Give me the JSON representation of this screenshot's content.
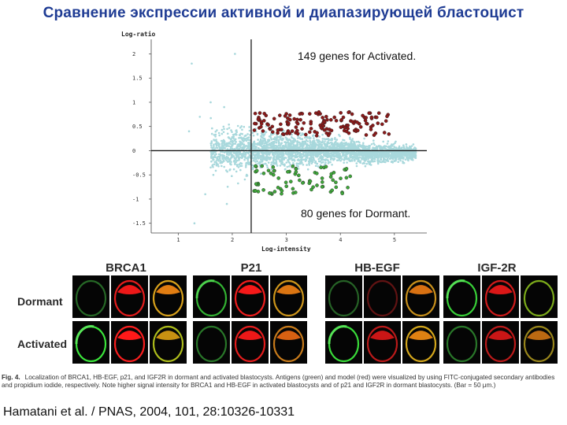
{
  "slide": {
    "title": "Сравнение экспрессии активной и диапазирующей бластоцист",
    "citation": "Hamatani et al. / PNAS, 2004, 101, 28:10326-10331"
  },
  "chart_data": {
    "type": "scatter",
    "title": "",
    "xlabel": "Log-intensity",
    "ylabel": "Log-ratio",
    "xlim": [
      0.5,
      5.6
    ],
    "ylim": [
      -1.7,
      2.3
    ],
    "x_ticks": [
      "1",
      "2",
      "3",
      "4",
      "5"
    ],
    "y_ticks": [
      "2",
      "1.5",
      "1",
      "0.5",
      "0",
      "-0.5",
      "-1",
      "-1.5"
    ],
    "annotations": [
      "149 genes for Activated.",
      "80 genes for Dormant."
    ],
    "reference_lines": {
      "x": 2.35,
      "y": 0
    },
    "series": [
      {
        "role": "all",
        "color": "#a8d8dc",
        "approx_count": 3000
      },
      {
        "role": "activated",
        "color": "#8b1a1a",
        "count": 149,
        "y_range": [
          0.3,
          0.8
        ],
        "x_range": [
          2.4,
          4.9
        ]
      },
      {
        "role": "dormant",
        "color": "#3fa63a",
        "count": 80,
        "y_range": [
          -0.9,
          -0.3
        ],
        "x_range": [
          2.4,
          4.2
        ]
      }
    ]
  },
  "figure": {
    "antibodies": [
      "BRCA1",
      "P21",
      "HB-EGF",
      "IGF-2R"
    ],
    "rows": [
      "Dormant",
      "Activated"
    ],
    "caption_label": "Fig. 4.",
    "caption_text": "Localization of BRCA1, HB-EGF, p21, and IGF2R in dormant and activated blastocysts. Antigens (green) and model (red) were visualized by using FITC-conjugated secondary antibodies and propidium iodide, respectively. Note higher signal intensity for BRCA1 and HB-EGF in activated blastocysts and of p21 and IGF2R in dormant blastocysts. (Bar = 50 μm.)"
  }
}
